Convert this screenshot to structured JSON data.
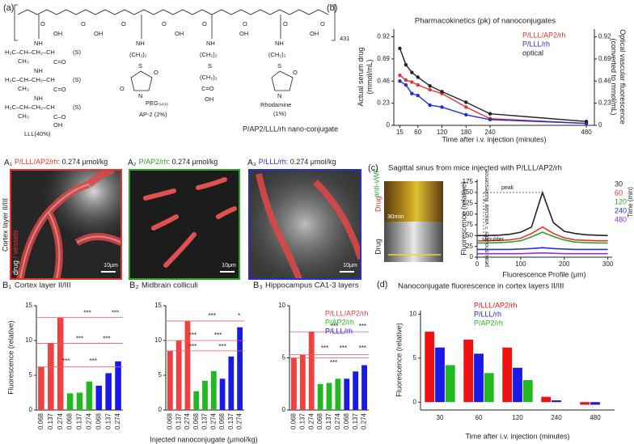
{
  "figure": {
    "structure": {
      "panel": "(a)",
      "repeat": "431",
      "footer": "P/AP2/LLL/rh nano-conjugate",
      "labels": [
        "O",
        "O",
        "O",
        "O",
        "O",
        "O",
        "O",
        "O",
        "OH",
        "OH",
        "OH",
        "OH",
        "OH",
        "NH",
        "H₃C–CH–CH₂–CH",
        "(S)",
        "CH₃",
        "C=O",
        "NH",
        "H₃C–CH–CH₂–CH",
        "(S)",
        "CH₃",
        "C=O",
        "NH",
        "H₃C–CH–CH₂–CH",
        "(S)",
        "CH₃",
        "C–O",
        "OH",
        "LLL(40%)",
        "NH",
        "(CH₂)₂",
        "S",
        "O",
        "N",
        "O",
        "PEG₃₄₀₀",
        "AP-2 (2%)",
        "NH",
        "(CH₂)₂",
        "S",
        "(CH₂)₂",
        "C=O",
        "OH",
        "NH",
        "(CH₂)₂",
        "S",
        "O",
        "N",
        "Rhodamine",
        "(1%)"
      ]
    },
    "images": [
      {
        "label": "A₁",
        "name": "P/LLL/AP2/rh",
        "dose": ": 0.274 μmol/kg",
        "scale": "10μm",
        "color": "#e8322e"
      },
      {
        "label": "A₂",
        "name": "P/AP2/rh",
        "dose": ": 0.274 μmol/kg",
        "scale": "10μm",
        "color": "#2ca02c"
      },
      {
        "label": "A₃",
        "name": "P/LLL/rh",
        "dose": ": 0.274 μmol/kg",
        "scale": "10μm",
        "color": "#2a2ae0"
      }
    ],
    "row_label": "Cortex layer II/III",
    "stain": [
      "drug",
      " / vessels"
    ],
    "c_images": {
      "top": [
        "Drug",
        "anti-vWF"
      ],
      "time": "30min",
      "bottom": "Drug"
    }
  },
  "chart_data": [
    {
      "type": "line",
      "panel": "(b)",
      "title": "Pharmacokinetics (pk) of nanoconjugates",
      "xlabel": "Time after i.v. injection (minutes)",
      "ylabel": [
        "Actual serum drug",
        "(mmol/mL)"
      ],
      "y2label": [
        "Optical vascular fluorescence",
        "(converted to mmol/mL)"
      ],
      "x": [
        15,
        30,
        45,
        60,
        90,
        120,
        180,
        240,
        480
      ],
      "series": [
        {
          "name": "P/LLL/AP2/rh",
          "color": "#e8322e",
          "values": [
            0.52,
            0.47,
            0.45,
            0.42,
            0.37,
            0.33,
            0.19,
            0.07,
            0.02
          ]
        },
        {
          "name": "P/LLL/rh",
          "color": "#1f2fd6",
          "values": [
            0.46,
            0.42,
            0.33,
            0.31,
            0.21,
            0.19,
            0.11,
            0.06,
            0.02
          ]
        },
        {
          "name": "optical",
          "color": "#222222",
          "axis": "y2",
          "values": [
            0.8,
            0.63,
            0.55,
            0.5,
            0.41,
            0.35,
            0.24,
            0.12,
            0.04
          ]
        }
      ],
      "xlim": [
        0,
        500
      ],
      "xticks": [
        15,
        60,
        120,
        180,
        240,
        480
      ],
      "ylim": [
        0,
        1.0
      ],
      "yticks": [
        0,
        0.23,
        0.46,
        0.69,
        0.92
      ],
      "y2lim": [
        0,
        1.0
      ],
      "y2ticks": [
        0,
        0.23,
        0.46,
        0.69,
        0.92
      ],
      "legend": "upper right"
    },
    {
      "type": "line",
      "panel": "(c)",
      "title": "Sagittal sinus from mice injected with P/LLL/AP2/rh",
      "xlabel": "Fluorescence Profile (μm)",
      "ylabel": "Fluorescence (relative)",
      "legend_title": "Time (min)",
      "x": [
        0,
        25,
        50,
        75,
        100,
        125,
        150,
        175,
        200,
        225,
        250,
        275,
        300
      ],
      "series": [
        {
          "name": "30",
          "color": "#222222",
          "values": [
            50,
            50,
            51,
            53,
            58,
            70,
            150,
            80,
            60,
            55,
            52,
            51,
            50
          ]
        },
        {
          "name": "60",
          "color": "#e8322e",
          "values": [
            38,
            38,
            39,
            40,
            44,
            55,
            70,
            55,
            45,
            40,
            39,
            38,
            38
          ]
        },
        {
          "name": "120",
          "color": "#2ca02c",
          "values": [
            33,
            33,
            34,
            35,
            38,
            47,
            58,
            48,
            40,
            35,
            34,
            33,
            33
          ]
        },
        {
          "name": "240",
          "color": "#2a2ae0",
          "values": [
            18,
            18,
            18,
            18,
            19,
            20,
            22,
            20,
            19,
            18,
            18,
            18,
            18
          ]
        },
        {
          "name": "480",
          "color": "#9b30d0",
          "values": [
            8,
            8,
            8,
            8,
            8,
            9,
            10,
            9,
            8,
            8,
            8,
            8,
            8
          ]
        }
      ],
      "xlim": [
        0,
        310
      ],
      "xticks": [
        0,
        100,
        200,
        300
      ],
      "ylim": [
        0,
        180
      ],
      "yticks": [
        0,
        25,
        50,
        75,
        100,
        125,
        150,
        175
      ],
      "annotations": [
        "peak",
        "shoulder",
        "peak-shoulder = vascular fluorescence"
      ],
      "legend": "right"
    },
    {
      "type": "bar",
      "panel": "B₁",
      "title": "Cortex layer II/III",
      "ylabel": "Fluorescence (relative)",
      "categories": [
        "0.068",
        "0.137",
        "0.274",
        "0.068",
        "0.137",
        "0.274",
        "0.068",
        "0.137",
        "0.274"
      ],
      "series": [
        {
          "color": "#f04040",
          "values": [
            6.2,
            9.6,
            13.3,
            null,
            null,
            null,
            null,
            null,
            null
          ]
        },
        {
          "color": "#22b822",
          "values": [
            null,
            null,
            null,
            2.4,
            2.5,
            4.1,
            null,
            null,
            null
          ]
        },
        {
          "color": "#1a1ae6",
          "values": [
            null,
            null,
            null,
            null,
            null,
            null,
            3.5,
            5.3,
            7.0
          ]
        }
      ],
      "ylim": [
        0,
        15
      ],
      "yticks": [
        0,
        5,
        10,
        15
      ],
      "annotations": [
        "***",
        "***",
        "***",
        "***",
        "***",
        "***"
      ]
    },
    {
      "type": "bar",
      "panel": "B₂",
      "title": "Midbrain colliculi",
      "xlabel": "Injected nanoconjugate (μmol/kg)",
      "categories": [
        "0.068",
        "0.137",
        "0.274",
        "0.068",
        "0.137",
        "0.274",
        "0.068",
        "0.137",
        "0.274"
      ],
      "series": [
        {
          "color": "#f04040",
          "values": [
            8.5,
            10.0,
            12.8,
            null,
            null,
            null,
            null,
            null,
            null
          ]
        },
        {
          "color": "#22b822",
          "values": [
            null,
            null,
            null,
            2.7,
            4.2,
            5.6,
            null,
            null,
            null
          ]
        },
        {
          "color": "#1a1ae6",
          "values": [
            null,
            null,
            null,
            null,
            null,
            null,
            4.5,
            7.7,
            11.9
          ]
        }
      ],
      "ylim": [
        0,
        15
      ],
      "yticks": [
        0,
        5,
        10,
        15
      ],
      "annotations": [
        "***",
        "*",
        "***",
        "***",
        "***",
        "***"
      ]
    },
    {
      "type": "bar",
      "panel": "B₃",
      "title": "Hippocampus CA1-3 layers",
      "categories": [
        "0.068",
        "0.137",
        "0.274",
        "0.068",
        "0.137",
        "0.274",
        "0.068",
        "0.137",
        "0.274"
      ],
      "series": [
        {
          "name": "P/LLL/AP2/rh",
          "color": "#f04040",
          "values": [
            5.0,
            5.3,
            7.5,
            null,
            null,
            null,
            null,
            null,
            null
          ]
        },
        {
          "name": "P/AP2/rh",
          "color": "#22b822",
          "values": [
            null,
            null,
            null,
            2.5,
            2.6,
            3.0,
            null,
            null,
            null
          ]
        },
        {
          "name": "P/LLL/rh",
          "color": "#1a1ae6",
          "values": [
            null,
            null,
            null,
            null,
            null,
            null,
            3.0,
            3.7,
            4.3
          ]
        }
      ],
      "ylim": [
        0,
        10
      ],
      "yticks": [
        0,
        5,
        10
      ],
      "annotations": [
        "***",
        "***",
        "***",
        "***",
        "***",
        "***"
      ],
      "legend": "upper right"
    },
    {
      "type": "bar",
      "panel": "(d)",
      "title": "Nanoconjugate fluorescence in cortex layers II/III",
      "xlabel": "Time after i.v. injection (minutes)",
      "ylabel": "Fluorescence (relative)",
      "categories": [
        "30",
        "60",
        "120",
        "240",
        "480"
      ],
      "series": [
        {
          "name": "P/LLL/AP2/rh",
          "color": "#f01010",
          "values": [
            8.0,
            7.1,
            6.2,
            0.6,
            -0.3
          ]
        },
        {
          "name": "P/LLL/rh",
          "color": "#1a1ae6",
          "values": [
            6.2,
            5.5,
            3.9,
            0.2,
            -0.3
          ]
        },
        {
          "name": "P/AP2/rh",
          "color": "#22b822",
          "values": [
            4.2,
            3.3,
            2.5,
            null,
            null
          ]
        }
      ],
      "ylim": [
        -0.9,
        10.4
      ],
      "yticks": [
        0,
        5,
        10
      ],
      "legend": "upper left"
    }
  ]
}
